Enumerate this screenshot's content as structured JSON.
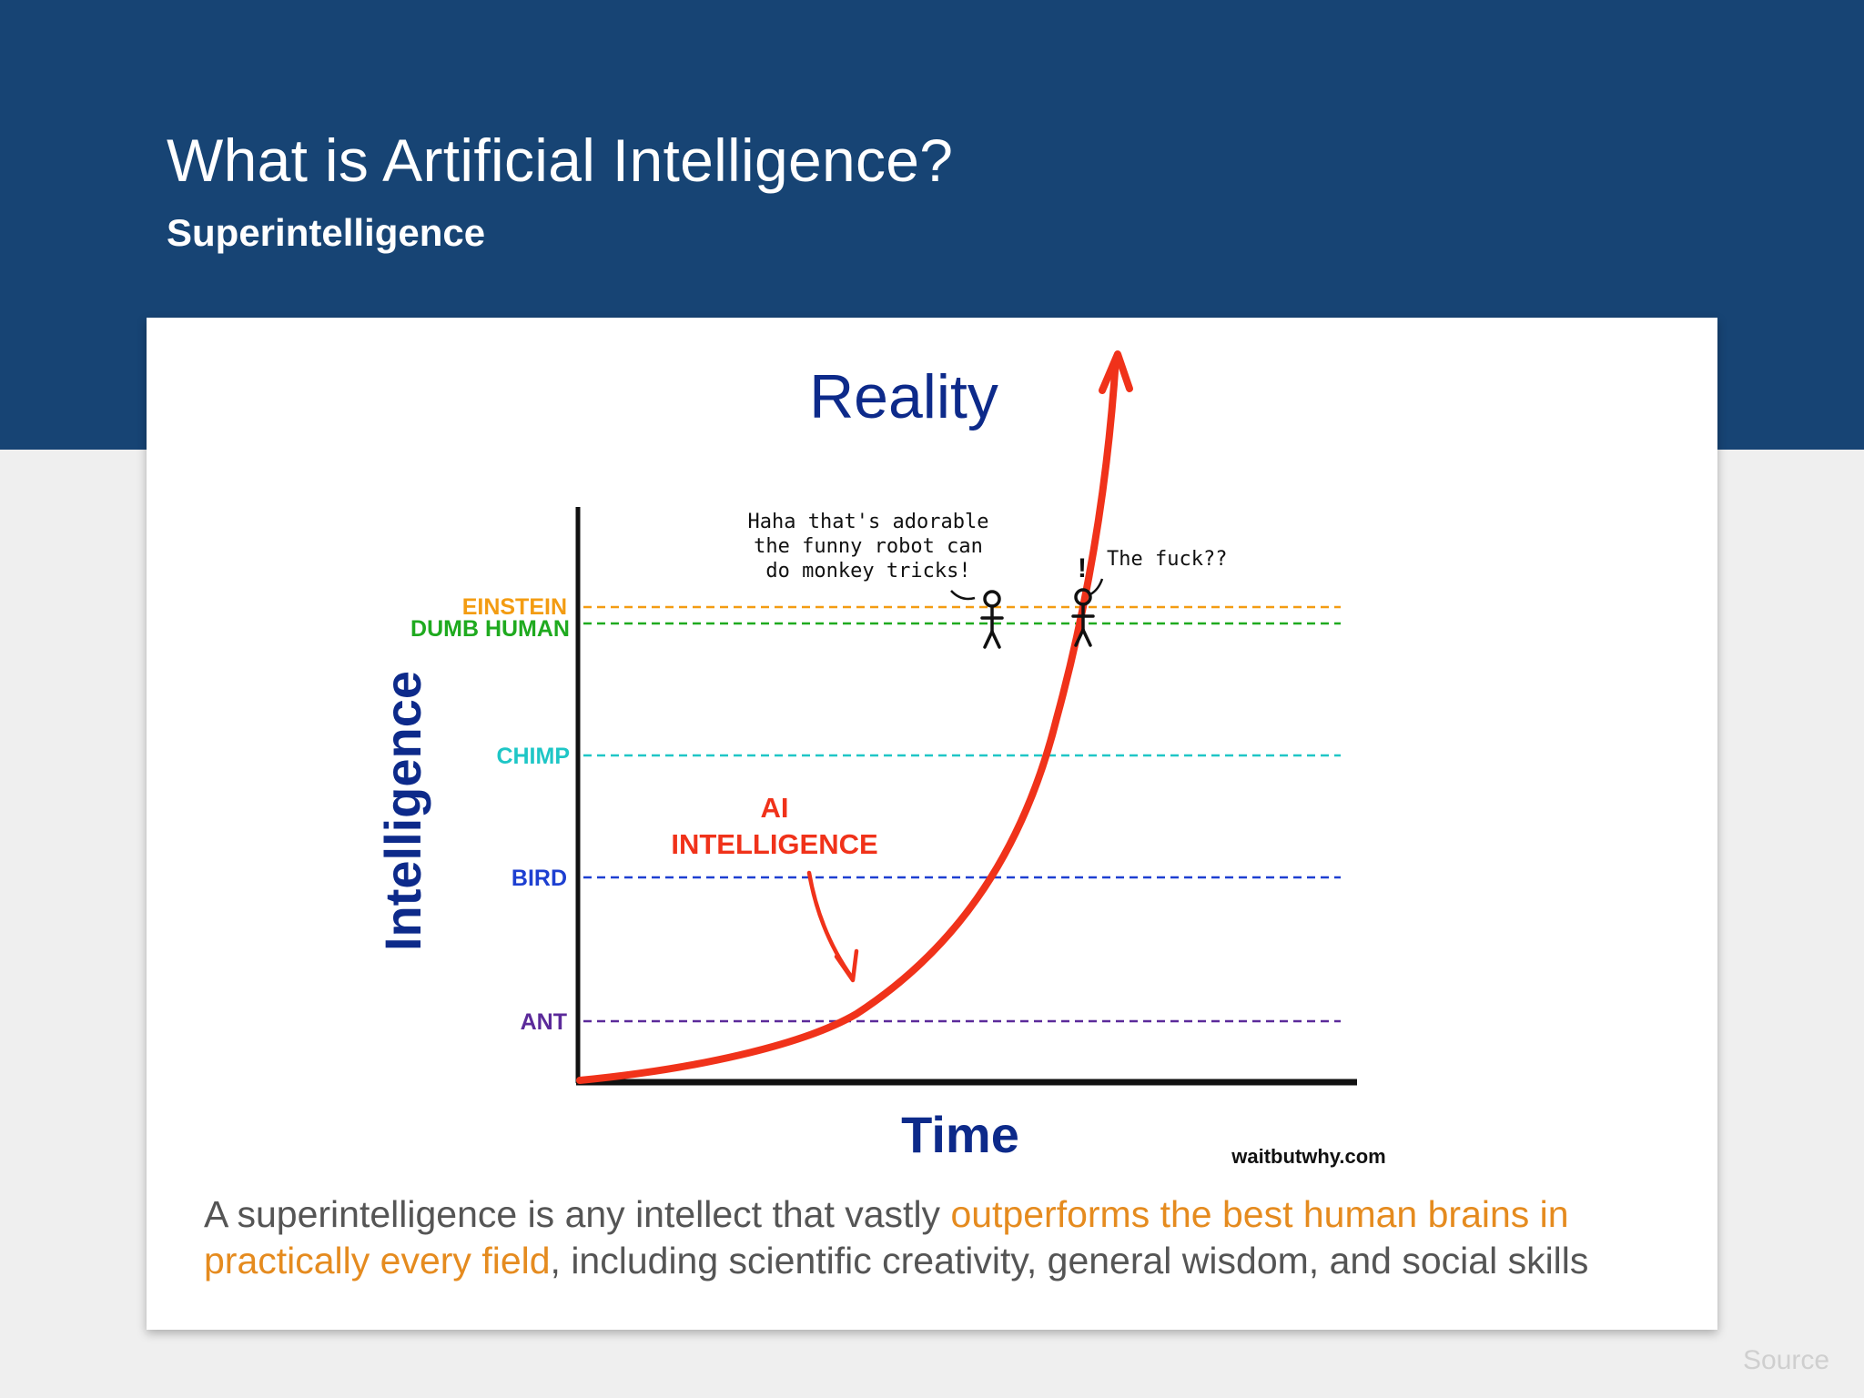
{
  "slide": {
    "title": "What is Artificial Intelligence?",
    "subtitle": "Superintelligence"
  },
  "diagram": {
    "title": "Reality",
    "y_axis_label": "Intelligence",
    "x_axis_label": "Time",
    "credit": "waitbutwhy.com",
    "curve_label_line1": "AI",
    "curve_label_line2": "INTELLIGENCE",
    "levels": [
      {
        "label": "EINSTEIN",
        "color": "#f39c12"
      },
      {
        "label": "DUMB HUMAN",
        "color": "#1faa1f"
      },
      {
        "label": "CHIMP",
        "color": "#1ec6c6"
      },
      {
        "label": "BIRD",
        "color": "#1d3fd1"
      },
      {
        "label": "ANT",
        "color": "#5b2a9a"
      }
    ],
    "speech_left": [
      "Haha that's adorable",
      "the funny robot can",
      "do monkey tricks!"
    ],
    "speech_right": "The fuck??",
    "exclaim": "!",
    "curve_color": "#f0321a",
    "title_color": "#0d2a8a"
  },
  "caption": {
    "part1": "A superintelligence is any intellect that vastly ",
    "highlight": "outperforms the best human brains in practically every field",
    "part2": ", including scientific creativity, general wisdom, and social skills"
  },
  "footer": {
    "source_label": "Source"
  }
}
